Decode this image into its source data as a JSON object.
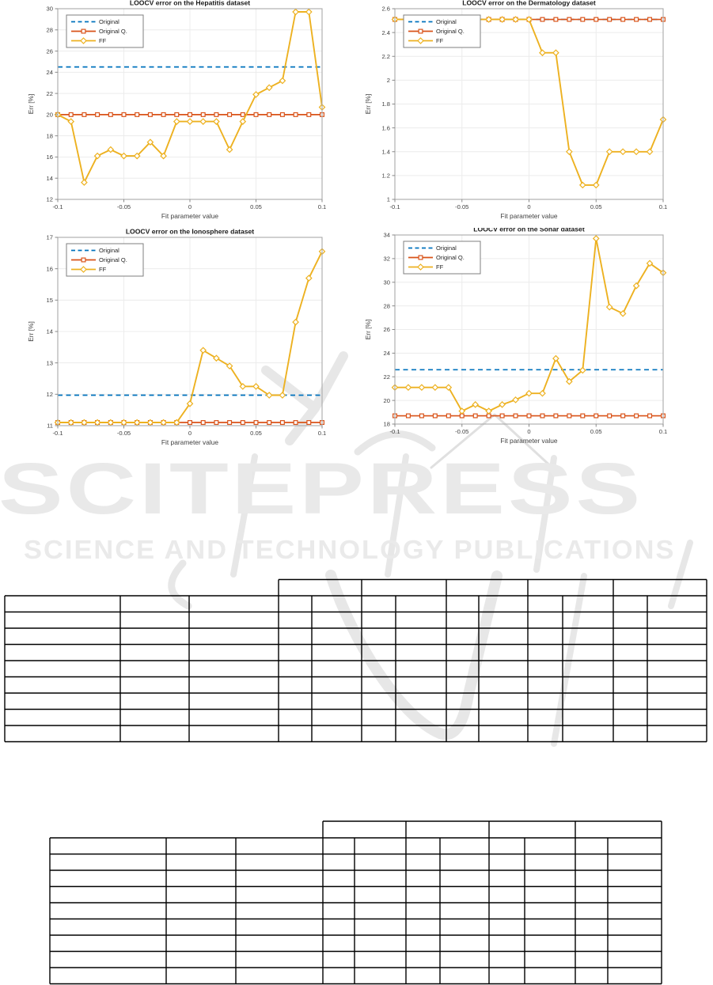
{
  "page": {
    "background": "#ffffff"
  },
  "watermark": {
    "title": "SCITEPRESS",
    "subtitle": "SCIENCE AND TECHNOLOGY PUBLICATIONS",
    "color": "#e9e9e9"
  },
  "palette": {
    "original_blue": "#0072BD",
    "original_q_red": "#D95319",
    "ff_yellow": "#EDB120",
    "grid": "#ececec",
    "axis_box": "#a9a9a9",
    "tick_label": "#3f3f3f",
    "title_text": "#1a1a1a",
    "table_border": "#000000",
    "watermark_gray": "#e7e7e7"
  },
  "chart_data": [
    {
      "type": "line",
      "title": "LOOCV error on the Hepatitis dataset",
      "xlabel": "Fit parameter value",
      "ylabel": "Err [%]",
      "xlim": [
        -0.1,
        0.1
      ],
      "ylim": [
        12,
        30
      ],
      "xticks": [
        -0.1,
        -0.05,
        0,
        0.05,
        0.1
      ],
      "xtick_labels": [
        "-0.1",
        "-0.05",
        "0",
        "0.05",
        "0.1"
      ],
      "yticks": [
        12,
        14,
        16,
        18,
        20,
        22,
        24,
        26,
        28,
        30
      ],
      "legend": [
        "Original",
        "Original Q.",
        "FF"
      ],
      "legend_position": "top-left",
      "grid": true,
      "x": [
        -0.1,
        -0.09,
        -0.08,
        -0.07,
        -0.06,
        -0.05,
        -0.04,
        -0.03,
        -0.02,
        -0.01,
        0,
        0.01,
        0.02,
        0.03,
        0.04,
        0.05,
        0.06,
        0.07,
        0.08,
        0.09,
        0.1
      ],
      "series": [
        {
          "name": "Original",
          "style": "hline-dashed",
          "value": 24.5
        },
        {
          "name": "Original Q.",
          "style": "hline-squares",
          "value": 20
        },
        {
          "name": "FF",
          "style": "line-diamonds",
          "values": [
            20,
            19.35,
            13.6,
            16.1,
            16.7,
            16.1,
            16.1,
            17.4,
            16.1,
            19.35,
            19.35,
            19.35,
            19.35,
            16.7,
            19.35,
            21.9,
            22.55,
            23.2,
            29.7,
            29.7,
            20.7
          ]
        }
      ]
    },
    {
      "type": "line",
      "title": "LOOCV error on the Dermatology dataset",
      "xlabel": "Fit parameter value",
      "ylabel": "Err [%]",
      "xlim": [
        -0.1,
        0.1
      ],
      "ylim": [
        1,
        2.6
      ],
      "xticks": [
        -0.1,
        -0.05,
        0,
        0.05,
        0.1
      ],
      "xtick_labels": [
        "-0.1",
        "-0.05",
        "0",
        "0.05",
        "0.1"
      ],
      "yticks": [
        1,
        1.2,
        1.4,
        1.6,
        1.8,
        2,
        2.2,
        2.4,
        2.6
      ],
      "legend": [
        "Original",
        "Original Q.",
        "FF"
      ],
      "legend_position": "top-left",
      "grid": true,
      "x": [
        -0.1,
        -0.09,
        -0.08,
        -0.07,
        -0.06,
        -0.05,
        -0.04,
        -0.03,
        -0.02,
        -0.01,
        0,
        0.01,
        0.02,
        0.03,
        0.04,
        0.05,
        0.06,
        0.07,
        0.08,
        0.09,
        0.1
      ],
      "series": [
        {
          "name": "Original",
          "style": "hline-dashed",
          "value": 2.51
        },
        {
          "name": "Original Q.",
          "style": "hline-squares",
          "value": 2.51
        },
        {
          "name": "FF",
          "style": "line-diamonds",
          "values": [
            2.51,
            2.51,
            2.51,
            2.51,
            2.51,
            2.51,
            2.51,
            2.51,
            2.51,
            2.51,
            2.51,
            2.23,
            2.23,
            1.4,
            1.12,
            1.12,
            1.4,
            1.4,
            1.4,
            1.4,
            1.67
          ]
        }
      ]
    },
    {
      "type": "line",
      "title": "LOOCV error on the Ionosphere dataset",
      "xlabel": "Fit parameter value",
      "ylabel": "Err [%]",
      "xlim": [
        -0.1,
        0.1
      ],
      "ylim": [
        11,
        17
      ],
      "xticks": [
        -0.1,
        -0.05,
        0,
        0.05,
        0.1
      ],
      "xtick_labels": [
        "-0.1",
        "-0.05",
        "0",
        "0.05",
        "0.1"
      ],
      "yticks": [
        11,
        12,
        13,
        14,
        15,
        16,
        17
      ],
      "legend": [
        "Original",
        "Original Q.",
        "FF"
      ],
      "legend_position": "top-left",
      "grid": true,
      "x": [
        -0.1,
        -0.09,
        -0.08,
        -0.07,
        -0.06,
        -0.05,
        -0.04,
        -0.03,
        -0.02,
        -0.01,
        0,
        0.01,
        0.02,
        0.03,
        0.04,
        0.05,
        0.06,
        0.07,
        0.08,
        0.09,
        0.1
      ],
      "series": [
        {
          "name": "Original",
          "style": "hline-dashed",
          "value": 11.97
        },
        {
          "name": "Original Q.",
          "style": "hline-squares",
          "value": 11.1
        },
        {
          "name": "FF",
          "style": "line-diamonds",
          "values": [
            11.1,
            11.1,
            11.1,
            11.1,
            11.1,
            11.1,
            11.1,
            11.1,
            11.1,
            11.1,
            11.7,
            13.4,
            13.15,
            12.9,
            12.25,
            12.25,
            11.97,
            11.97,
            14.3,
            15.7,
            16.55
          ]
        }
      ]
    },
    {
      "type": "line",
      "title": "LOOCV error on the Sonar dataset",
      "xlabel": "Fit parameter value",
      "ylabel": "Err [%]",
      "xlim": [
        -0.1,
        0.1
      ],
      "ylim": [
        18,
        34
      ],
      "xticks": [
        -0.1,
        -0.05,
        0,
        0.05,
        0.1
      ],
      "xtick_labels": [
        "-0.1",
        "-0.05",
        "0",
        "0.05",
        "0.1"
      ],
      "yticks": [
        18,
        20,
        22,
        24,
        26,
        28,
        30,
        32,
        34
      ],
      "legend": [
        "Original",
        "Original Q.",
        "FF"
      ],
      "legend_position": "top-left",
      "grid": true,
      "x": [
        -0.1,
        -0.09,
        -0.08,
        -0.07,
        -0.06,
        -0.05,
        -0.04,
        -0.03,
        -0.02,
        -0.01,
        0,
        0.01,
        0.02,
        0.03,
        0.04,
        0.05,
        0.06,
        0.07,
        0.08,
        0.09,
        0.1
      ],
      "series": [
        {
          "name": "Original",
          "style": "hline-dashed",
          "value": 22.6
        },
        {
          "name": "Original Q.",
          "style": "hline-squares",
          "value": 18.7
        },
        {
          "name": "FF",
          "style": "line-diamonds",
          "values": [
            21.1,
            21.1,
            21.1,
            21.1,
            21.1,
            19.1,
            19.65,
            19.1,
            19.65,
            20.05,
            20.6,
            20.6,
            23.55,
            21.6,
            22.55,
            33.7,
            27.9,
            27.35,
            29.7,
            31.6,
            30.8
          ]
        }
      ]
    }
  ],
  "tables": [
    {
      "name": "results-table-1",
      "description": "empty bordered table",
      "left_columns": 3,
      "group_header_cells": 5,
      "sub_columns_per_group": 2,
      "data_rows": 9,
      "cells": []
    },
    {
      "name": "results-table-2",
      "description": "empty bordered table",
      "left_columns": 3,
      "group_header_cells": 4,
      "sub_columns_per_group": 2,
      "data_rows": 9,
      "cells": []
    }
  ]
}
